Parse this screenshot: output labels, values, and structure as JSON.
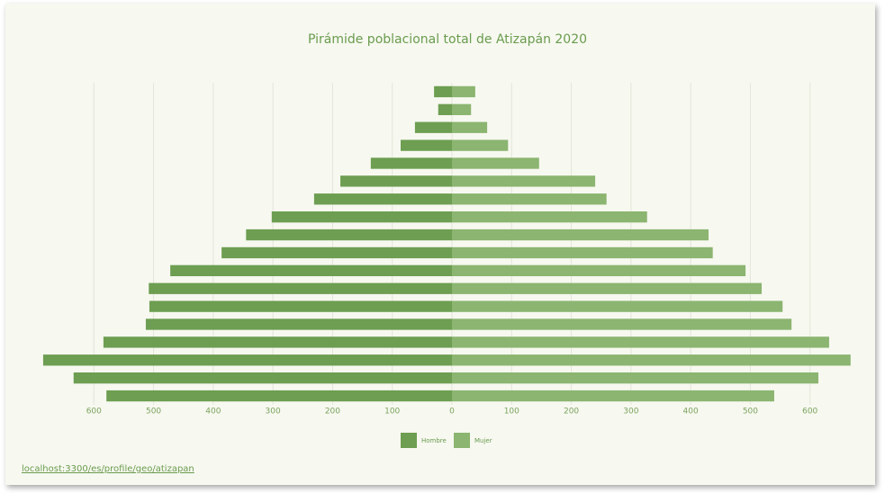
{
  "chart_data": {
    "type": "pyramid",
    "title": "Pirámide poblacional total de Atizapán 2020",
    "series": [
      {
        "name": "Hombre",
        "color": "#6d9e51",
        "values": [
          30,
          23,
          62,
          86,
          136,
          187,
          231,
          302,
          345,
          386,
          472,
          508,
          507,
          513,
          584,
          685,
          634,
          579
        ]
      },
      {
        "name": "Mujer",
        "color": "#8bb570",
        "values": [
          39,
          32,
          59,
          94,
          146,
          240,
          259,
          327,
          430,
          437,
          492,
          519,
          554,
          569,
          632,
          668,
          614,
          540
        ]
      }
    ],
    "xlim": [
      0,
      700
    ],
    "xticks": [
      0,
      100,
      200,
      300,
      400,
      500,
      600
    ],
    "grid": true,
    "source": "localhost:3300/es/profile/geo/atizapan"
  }
}
